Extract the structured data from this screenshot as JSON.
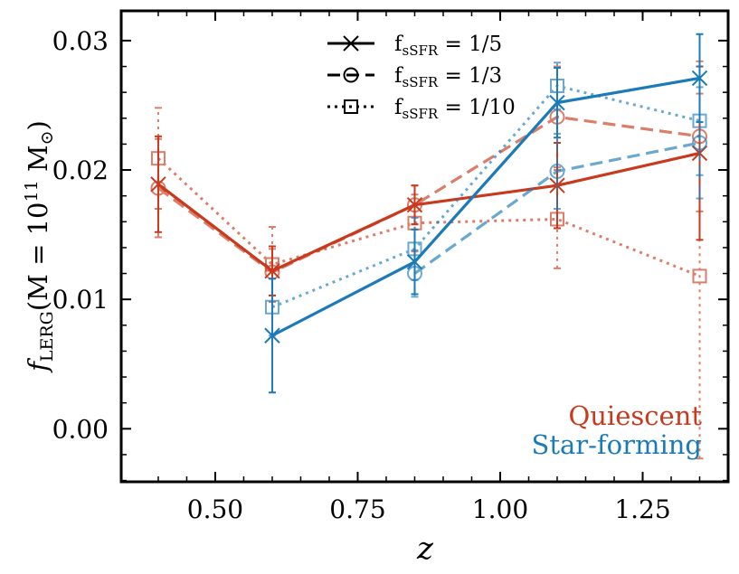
{
  "chart_data": {
    "type": "line",
    "title": "",
    "xlabel": "z",
    "ylabel": {
      "main": "f",
      "sub": "LERG",
      "paren": "(M = 10",
      "sup": "11",
      "tail": " M",
      "sun_sub": "⊙",
      "close": ")"
    },
    "xlim": [
      0.335,
      1.4
    ],
    "ylim": [
      -0.0041,
      0.0323
    ],
    "x_ticks": [
      0.5,
      0.75,
      1.0,
      1.25
    ],
    "x_tick_labels": [
      "0.50",
      "0.75",
      "1.00",
      "1.25"
    ],
    "y_ticks": [
      0.0,
      0.01,
      0.02,
      0.03
    ],
    "y_tick_labels": [
      "0.00",
      "0.01",
      "0.02",
      "0.03"
    ],
    "colors": {
      "quiescent": "#c8391d",
      "star_forming": "#1b7ab8"
    },
    "legend": [
      {
        "label_main": "f",
        "label_sub": "sSFR",
        "label_rest": " = 1/5",
        "style": "solid",
        "marker": "x"
      },
      {
        "label_main": "f",
        "label_sub": "sSFR",
        "label_rest": " = 1/3",
        "style": "dashed",
        "marker": "circle"
      },
      {
        "label_main": "f",
        "label_sub": "sSFR",
        "label_rest": " = 1/10",
        "style": "dotted",
        "marker": "square"
      }
    ],
    "annotations": {
      "quiescent": "Quiescent",
      "star_forming": "Star-forming"
    },
    "series": [
      {
        "name": "Quiescent fsSFR=1/5",
        "population": "quiescent",
        "fsSFR": "1/5",
        "style": "solid",
        "marker": "x",
        "x": [
          0.4,
          0.6,
          0.85,
          1.1,
          1.35
        ],
        "y": [
          0.0189,
          0.0122,
          0.0173,
          0.0188,
          0.0213
        ],
        "yerr": [
          0.0037,
          0.0019,
          0.0015,
          0.0033,
          0.0067
        ]
      },
      {
        "name": "Quiescent fsSFR=1/3",
        "population": "quiescent",
        "fsSFR": "1/3",
        "style": "dashed",
        "marker": "circle",
        "x": [
          0.4,
          0.6,
          0.85,
          1.1,
          1.35
        ],
        "y": [
          0.0186,
          0.0121,
          0.0173,
          0.0241,
          0.0226
        ],
        "yerr": [
          0.0038,
          0.0018,
          0.0015,
          0.0039,
          0.0058
        ]
      },
      {
        "name": "Quiescent fsSFR=1/10",
        "population": "quiescent",
        "fsSFR": "1/10",
        "style": "dotted",
        "marker": "square",
        "x": [
          0.4,
          0.6,
          0.85,
          1.1,
          1.35
        ],
        "y": [
          0.0209,
          0.0127,
          0.0159,
          0.0162,
          0.0118
        ],
        "yerr": [
          0.0039,
          0.0029,
          0.0022,
          0.0038,
          0.0141
        ]
      },
      {
        "name": "Star-forming fsSFR=1/5",
        "population": "star_forming",
        "fsSFR": "1/5",
        "style": "solid",
        "marker": "x",
        "x": [
          0.6,
          0.85,
          1.1,
          1.35
        ],
        "y": [
          0.0072,
          0.0129,
          0.0252,
          0.0271
        ],
        "yerr": [
          0.0044,
          0.0025,
          0.0027,
          0.0034
        ]
      },
      {
        "name": "Star-forming fsSFR=1/3",
        "population": "star_forming",
        "fsSFR": "1/3",
        "style": "dashed",
        "marker": "circle",
        "x": [
          0.85,
          1.1,
          1.35
        ],
        "y": [
          0.012,
          0.0199,
          0.0221
        ],
        "yerr": [
          0.0018,
          0.0029,
          0.0043
        ]
      },
      {
        "name": "Star-forming fsSFR=1/10",
        "population": "star_forming",
        "fsSFR": "1/10",
        "style": "dotted",
        "marker": "square",
        "x": [
          0.6,
          0.85,
          1.1,
          1.35
        ],
        "y": [
          0.0094,
          0.0139,
          0.0265,
          0.0238
        ],
        "yerr": [
          0.0022,
          0.0024,
          0.0018,
          0.0042
        ]
      }
    ]
  }
}
